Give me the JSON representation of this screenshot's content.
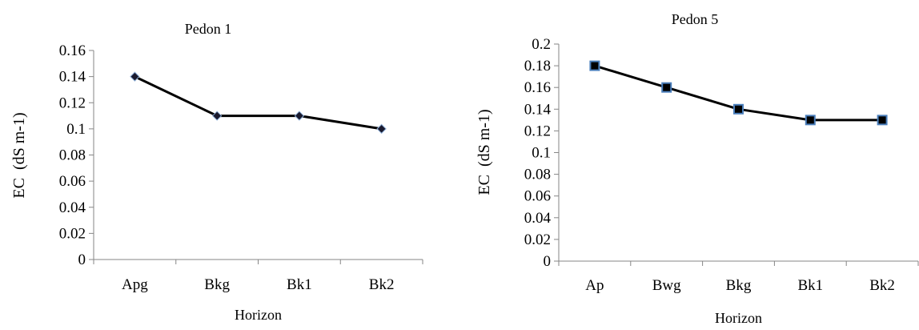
{
  "chart_data": [
    {
      "type": "line",
      "title": "Pedon 1",
      "xlabel": "Horizon",
      "ylabel": "EC  (dS m-1)",
      "categories": [
        "Apg",
        "Bkg",
        "Bk1",
        "Bk2"
      ],
      "ylim": [
        0,
        0.16
      ],
      "yticks": [
        "0",
        "0.02",
        "0.04",
        "0.06",
        "0.08",
        "0.1",
        "0.12",
        "0.14",
        "0.16"
      ],
      "series": [
        {
          "values": [
            0.14,
            0.11,
            0.11,
            0.1
          ],
          "marker": "diamond",
          "color": "#000000",
          "marker_fill": "#1a1a2e"
        }
      ],
      "grid": false,
      "legend": "none"
    },
    {
      "type": "line",
      "title": "Pedon 5",
      "xlabel": "Horizon",
      "ylabel": "EC  (dS m-1)",
      "categories": [
        "Ap",
        "Bwg",
        "Bkg",
        "Bk1",
        "Bk2"
      ],
      "ylim": [
        0,
        0.2
      ],
      "yticks": [
        "0",
        "0.02",
        "0.04",
        "0.06",
        "0.08",
        "0.1",
        "0.12",
        "0.14",
        "0.16",
        "0.18",
        "0.2"
      ],
      "series": [
        {
          "values": [
            0.18,
            0.16,
            0.14,
            0.13,
            0.13
          ],
          "marker": "square",
          "color": "#000000",
          "marker_fill": "#000000",
          "marker_edge": "#4a7ebb"
        }
      ],
      "grid": false,
      "legend": "none"
    }
  ]
}
